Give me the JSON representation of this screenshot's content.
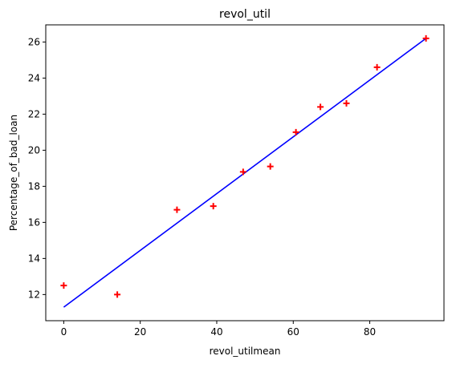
{
  "chart_data": {
    "type": "scatter",
    "title": "revol_util",
    "xlabel": "revol_utilmean",
    "ylabel": "Percentage_of_bad_loan",
    "xlim": [
      -4.7,
      99.4
    ],
    "ylim": [
      10.55,
      26.95
    ],
    "xticks": [
      0,
      20,
      40,
      60,
      80
    ],
    "yticks": [
      12,
      14,
      16,
      18,
      20,
      22,
      24,
      26
    ],
    "grid": false,
    "points": {
      "x": [
        0,
        14,
        29.6,
        39.1,
        46.9,
        54.0,
        60.7,
        67.1,
        73.9,
        81.9,
        94.7
      ],
      "y": [
        12.5,
        12.0,
        16.7,
        16.9,
        18.8,
        19.1,
        21.0,
        22.4,
        22.6,
        24.6,
        26.2
      ],
      "marker": "plus",
      "color": "#ff0000"
    },
    "fit_line": {
      "x": [
        0,
        94.7
      ],
      "y": [
        11.3,
        26.2
      ],
      "color": "#0000ff"
    }
  }
}
